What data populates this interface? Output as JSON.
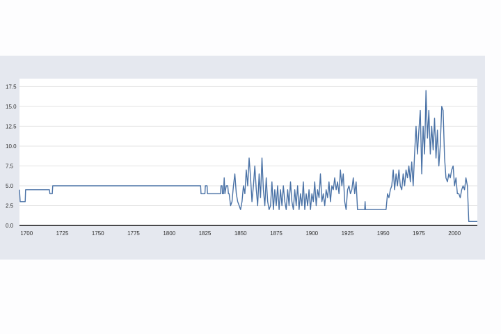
{
  "chart_data": {
    "type": "line",
    "title": "",
    "xlabel": "",
    "ylabel": "",
    "xlim": [
      1695,
      2016
    ],
    "ylim": [
      0,
      18.5
    ],
    "xticks": [
      1700,
      1725,
      1750,
      1775,
      1800,
      1825,
      1850,
      1875,
      1900,
      1925,
      1950,
      1975,
      2000
    ],
    "yticks": [
      0.0,
      2.5,
      5.0,
      7.5,
      10.0,
      12.5,
      15.0,
      17.5
    ],
    "grid": "horizontal",
    "legend": "none",
    "colors": {
      "line": "#4a72a6",
      "panel": "#e5e8ef",
      "plot_bg": "#ffffff",
      "grid": "#e3e3e3",
      "axis": "#111111"
    },
    "series": [
      {
        "values": [
          [
            1695,
            4.5
          ],
          [
            1695.5,
            3.0
          ],
          [
            1699,
            3.0
          ],
          [
            1699.3,
            4.5
          ],
          [
            1716,
            4.5
          ],
          [
            1716.3,
            4.0
          ],
          [
            1718,
            4.0
          ],
          [
            1718.3,
            5.0
          ],
          [
            1822,
            5.0
          ],
          [
            1822.3,
            4.0
          ],
          [
            1825,
            4.0
          ],
          [
            1825.3,
            5.0
          ],
          [
            1826.5,
            5.0
          ],
          [
            1826.8,
            4.0
          ],
          [
            1836,
            4.0
          ],
          [
            1836.3,
            5.0
          ],
          [
            1837,
            5.0
          ],
          [
            1837.3,
            4.0
          ],
          [
            1838,
            4.0
          ],
          [
            1838.5,
            6.0
          ],
          [
            1839,
            4.0
          ],
          [
            1840,
            5.0
          ],
          [
            1841,
            5.0
          ],
          [
            1841.5,
            4.0
          ],
          [
            1842,
            4.0
          ],
          [
            1843,
            2.5
          ],
          [
            1844,
            3.0
          ],
          [
            1845,
            5.0
          ],
          [
            1846,
            6.5
          ],
          [
            1847,
            4.0
          ],
          [
            1848,
            3.0
          ],
          [
            1849,
            2.5
          ],
          [
            1850,
            2.0
          ],
          [
            1851,
            3.0
          ],
          [
            1852,
            5.0
          ],
          [
            1853,
            4.0
          ],
          [
            1854,
            7.0
          ],
          [
            1855,
            5.0
          ],
          [
            1856,
            8.5
          ],
          [
            1857,
            6.0
          ],
          [
            1858,
            3.0
          ],
          [
            1859,
            5.0
          ],
          [
            1860,
            7.5
          ],
          [
            1861,
            4.5
          ],
          [
            1862,
            2.5
          ],
          [
            1863,
            6.5
          ],
          [
            1864,
            3.5
          ],
          [
            1865,
            8.5
          ],
          [
            1866,
            4.5
          ],
          [
            1867,
            2.5
          ],
          [
            1868,
            6.0
          ],
          [
            1869,
            3.0
          ],
          [
            1870,
            2.0
          ],
          [
            1871,
            2.5
          ],
          [
            1872,
            5.5
          ],
          [
            1873,
            2.0
          ],
          [
            1874,
            4.5
          ],
          [
            1875,
            2.5
          ],
          [
            1876,
            5.0
          ],
          [
            1877,
            2.0
          ],
          [
            1878,
            4.5
          ],
          [
            1879,
            2.5
          ],
          [
            1880,
            5.0
          ],
          [
            1881,
            3.0
          ],
          [
            1882,
            2.0
          ],
          [
            1883,
            4.5
          ],
          [
            1884,
            2.5
          ],
          [
            1885,
            5.5
          ],
          [
            1886,
            3.0
          ],
          [
            1887,
            2.0
          ],
          [
            1888,
            4.5
          ],
          [
            1889,
            2.5
          ],
          [
            1890,
            5.0
          ],
          [
            1891,
            2.0
          ],
          [
            1892,
            4.0
          ],
          [
            1893,
            2.5
          ],
          [
            1894,
            5.5
          ],
          [
            1895,
            2.0
          ],
          [
            1896,
            4.0
          ],
          [
            1897,
            2.5
          ],
          [
            1898,
            4.5
          ],
          [
            1899,
            2.0
          ],
          [
            1900,
            4.0
          ],
          [
            1901,
            3.0
          ],
          [
            1902,
            5.5
          ],
          [
            1903,
            2.5
          ],
          [
            1904,
            4.5
          ],
          [
            1905,
            3.5
          ],
          [
            1906,
            6.5
          ],
          [
            1907,
            3.0
          ],
          [
            1908,
            4.0
          ],
          [
            1909,
            2.5
          ],
          [
            1910,
            4.5
          ],
          [
            1911,
            3.5
          ],
          [
            1912,
            5.5
          ],
          [
            1913,
            3.0
          ],
          [
            1914,
            5.0
          ],
          [
            1915,
            4.5
          ],
          [
            1916,
            6.0
          ],
          [
            1917,
            4.5
          ],
          [
            1918,
            5.5
          ],
          [
            1919,
            4.0
          ],
          [
            1920,
            7.0
          ],
          [
            1921,
            5.0
          ],
          [
            1922,
            6.5
          ],
          [
            1923,
            3.0
          ],
          [
            1924,
            2.0
          ],
          [
            1925,
            4.5
          ],
          [
            1926,
            5.0
          ],
          [
            1927,
            4.0
          ],
          [
            1928,
            4.5
          ],
          [
            1929,
            6.0
          ],
          [
            1930,
            4.0
          ],
          [
            1931,
            5.5
          ],
          [
            1932,
            2.0
          ],
          [
            1937,
            2.0
          ],
          [
            1937.3,
            3.0
          ],
          [
            1937.6,
            2.0
          ],
          [
            1952,
            2.0
          ],
          [
            1953,
            4.0
          ],
          [
            1954,
            3.5
          ],
          [
            1955,
            4.5
          ],
          [
            1956,
            5.0
          ],
          [
            1957,
            7.0
          ],
          [
            1958,
            4.5
          ],
          [
            1959,
            6.5
          ],
          [
            1960,
            5.0
          ],
          [
            1961,
            7.0
          ],
          [
            1962,
            5.0
          ],
          [
            1963,
            4.5
          ],
          [
            1964,
            6.5
          ],
          [
            1965,
            5.0
          ],
          [
            1966,
            7.0
          ],
          [
            1967,
            6.0
          ],
          [
            1968,
            7.5
          ],
          [
            1969,
            5.5
          ],
          [
            1970,
            8.0
          ],
          [
            1971,
            5.0
          ],
          [
            1972,
            9.0
          ],
          [
            1973,
            12.5
          ],
          [
            1974,
            9.0
          ],
          [
            1975,
            12.0
          ],
          [
            1976,
            14.5
          ],
          [
            1977,
            6.5
          ],
          [
            1978,
            12.5
          ],
          [
            1979,
            9.0
          ],
          [
            1980,
            17.0
          ],
          [
            1981,
            11.0
          ],
          [
            1982,
            14.5
          ],
          [
            1983,
            9.0
          ],
          [
            1984,
            12.5
          ],
          [
            1985,
            9.5
          ],
          [
            1986,
            13.5
          ],
          [
            1987,
            8.5
          ],
          [
            1988,
            12.0
          ],
          [
            1989,
            7.5
          ],
          [
            1990,
            10.0
          ],
          [
            1991,
            15.0
          ],
          [
            1992,
            14.5
          ],
          [
            1993,
            8.5
          ],
          [
            1994,
            6.0
          ],
          [
            1995,
            5.5
          ],
          [
            1996,
            6.5
          ],
          [
            1997,
            6.0
          ],
          [
            1998,
            7.0
          ],
          [
            1999,
            7.5
          ],
          [
            2000,
            5.0
          ],
          [
            2001,
            6.0
          ],
          [
            2002,
            4.0
          ],
          [
            2003,
            4.0
          ],
          [
            2004,
            3.5
          ],
          [
            2005,
            4.5
          ],
          [
            2006,
            5.0
          ],
          [
            2007,
            4.5
          ],
          [
            2008,
            6.0
          ],
          [
            2009,
            5.0
          ],
          [
            2010,
            0.5
          ],
          [
            2016,
            0.5
          ]
        ]
      }
    ]
  }
}
